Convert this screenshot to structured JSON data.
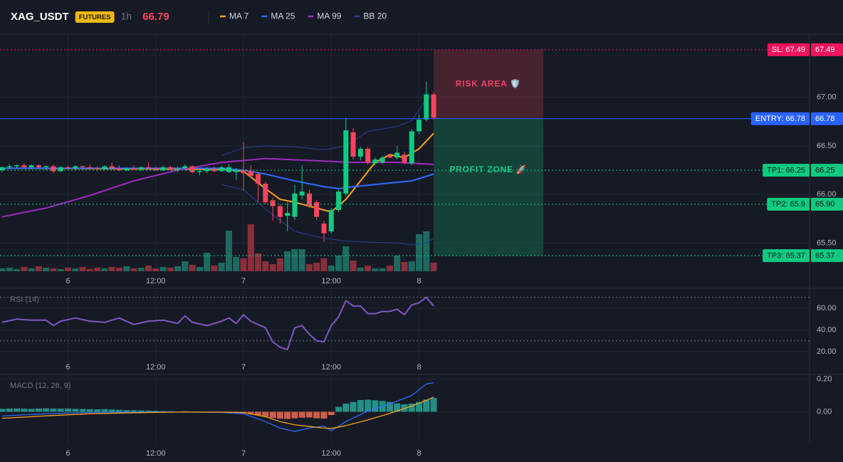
{
  "chart_data": [
    {
      "type": "candlestick",
      "title": "XAG_USDT",
      "badge": "FUTURES",
      "interval": "1h",
      "last_price": 66.79,
      "up_color": "#0ecb81",
      "down_color": "#f6465d",
      "volume_up_color": "#1d6b60",
      "volume_down_color": "#8a2f3c",
      "grid": true,
      "xlim": [
        -0.3,
        110.4
      ],
      "xticks": [
        {
          "value": 9,
          "label": "6"
        },
        {
          "value": 21,
          "label": "12:00"
        },
        {
          "value": 33,
          "label": "7"
        },
        {
          "value": 45,
          "label": "12:00"
        },
        {
          "value": 57,
          "label": "8"
        }
      ],
      "ylim": [
        65.21,
        67.65
      ],
      "yticks": [
        {
          "value": 65.5,
          "label": "65.50"
        },
        {
          "value": 66,
          "label": "66.00"
        },
        {
          "value": 66.5,
          "label": "66.50"
        },
        {
          "value": 67,
          "label": "67.00"
        }
      ],
      "volume_ylim": [
        0,
        333
      ],
      "x": [
        0,
        1,
        2,
        3,
        4,
        5,
        6,
        7,
        8,
        9,
        10,
        11,
        12,
        13,
        14,
        15,
        16,
        17,
        18,
        19,
        20,
        21,
        22,
        23,
        24,
        25,
        26,
        27,
        28,
        29,
        30,
        31,
        32,
        33,
        34,
        35,
        36,
        37,
        38,
        39,
        40,
        41,
        42,
        43,
        44,
        45,
        46,
        47,
        48,
        49,
        50,
        51,
        52,
        53,
        54,
        55,
        56,
        57,
        58,
        59
      ],
      "open": [
        66.25,
        66.28,
        66.29,
        66.3,
        66.28,
        66.3,
        66.28,
        66.29,
        66.24,
        66.28,
        66.27,
        66.29,
        66.28,
        66.27,
        66.26,
        66.29,
        66.27,
        66.25,
        66.27,
        66.26,
        66.28,
        66.27,
        66.25,
        66.28,
        66.26,
        66.27,
        66.29,
        66.23,
        66.24,
        66.26,
        66.24,
        66.23,
        66.23,
        66.25,
        66.24,
        66.21,
        66.11,
        65.94,
        65.88,
        65.78,
        65.77,
        65.99,
        66.01,
        65.92,
        65.7,
        65.62,
        65.84,
        66.01,
        66.64,
        66.39,
        66.47,
        66.32,
        66.33,
        66.4,
        66.38,
        66.41,
        66.32,
        66.65,
        66.77,
        67.03
      ],
      "high": [
        66.29,
        66.31,
        66.31,
        66.32,
        66.31,
        66.31,
        66.3,
        66.31,
        66.29,
        66.3,
        66.3,
        66.3,
        66.31,
        66.29,
        66.3,
        66.33,
        66.3,
        66.28,
        66.3,
        66.29,
        66.33,
        66.29,
        66.3,
        66.3,
        66.29,
        66.31,
        66.3,
        66.26,
        66.28,
        66.29,
        66.3,
        66.31,
        66.27,
        66.54,
        66.3,
        66.24,
        66.13,
        65.97,
        65.9,
        65.92,
        66.1,
        66.3,
        66.05,
        65.94,
        65.73,
        65.86,
        66.05,
        66.79,
        66.68,
        66.49,
        66.49,
        66.38,
        66.4,
        66.42,
        66.5,
        66.44,
        66.67,
        66.82,
        67.16,
        67.05
      ],
      "low": [
        66.23,
        66.26,
        66.27,
        66.27,
        66.26,
        66.27,
        66.25,
        66.22,
        66.23,
        66.26,
        66.25,
        66.27,
        66.26,
        66.24,
        66.25,
        66.27,
        66.24,
        66.24,
        66.25,
        66.24,
        66.26,
        66.24,
        66.24,
        66.25,
        66.23,
        66.26,
        66.22,
        66.2,
        66.22,
        66.23,
        66.23,
        66.22,
        66.15,
        66.04,
        66.17,
        65.92,
        65.9,
        65.73,
        65.7,
        65.62,
        65.74,
        65.95,
        65.86,
        65.74,
        65.51,
        65.6,
        65.82,
        65.98,
        66.36,
        66.35,
        66.31,
        66.3,
        66.31,
        66.37,
        66.36,
        66.31,
        66.3,
        66.62,
        66.75,
        66.77
      ],
      "close": [
        66.28,
        66.29,
        66.3,
        66.28,
        66.3,
        66.28,
        66.29,
        66.24,
        66.28,
        66.27,
        66.29,
        66.28,
        66.27,
        66.26,
        66.29,
        66.27,
        66.25,
        66.27,
        66.26,
        66.28,
        66.27,
        66.25,
        66.28,
        66.26,
        66.27,
        66.29,
        66.23,
        66.24,
        66.26,
        66.24,
        66.28,
        66.28,
        66.25,
        66.22,
        66.19,
        66.11,
        65.92,
        65.88,
        65.77,
        65.81,
        66.01,
        66.03,
        65.88,
        65.77,
        65.6,
        65.84,
        66.03,
        66.66,
        66.39,
        66.47,
        66.33,
        66.36,
        66.38,
        66.38,
        66.43,
        66.33,
        66.65,
        66.77,
        67.03,
        66.79
      ],
      "volume": [
        4,
        5,
        3,
        6,
        4,
        7,
        5,
        4,
        3,
        5,
        4,
        6,
        3,
        5,
        4,
        6,
        5,
        7,
        4,
        5,
        8,
        4,
        6,
        5,
        7,
        14,
        9,
        6,
        26,
        8,
        12,
        57,
        20,
        18,
        66,
        25,
        14,
        10,
        18,
        28,
        31,
        31,
        10,
        12,
        18,
        8,
        22,
        35,
        15,
        5,
        8,
        4,
        4,
        8,
        22,
        13,
        14,
        52,
        56,
        12
      ],
      "series": [
        {
          "name": "MA 7",
          "color": "#f7a21b",
          "x": [
            0,
            30,
            33,
            36,
            38,
            40,
            43,
            45,
            47,
            49,
            51,
            53,
            55,
            57,
            59
          ],
          "values": [
            66.27,
            66.26,
            66.24,
            66.06,
            65.95,
            65.92,
            65.86,
            65.82,
            65.95,
            66.14,
            66.33,
            66.41,
            66.38,
            66.47,
            66.63
          ]
        },
        {
          "name": "MA 25",
          "color": "#2f6bff",
          "x": [
            0,
            30,
            33,
            36,
            40,
            44,
            46,
            48,
            52,
            56,
            59
          ],
          "values": [
            66.27,
            66.27,
            66.25,
            66.21,
            66.14,
            66.08,
            66.06,
            66.08,
            66.11,
            66.14,
            66.21
          ]
        },
        {
          "name": "MA 99",
          "color": "#a02bc0",
          "x": [
            0,
            6,
            12,
            18,
            24,
            30,
            36,
            42,
            48,
            54,
            59
          ],
          "values": [
            65.77,
            65.86,
            65.99,
            66.14,
            66.25,
            66.33,
            66.37,
            66.35,
            66.33,
            66.33,
            66.31
          ]
        },
        {
          "name": "BB 20",
          "color": "#2b3f94",
          "x": [
            30,
            33,
            36,
            40,
            44,
            47,
            50,
            54,
            56,
            58,
            59
          ],
          "values": [
            66.4,
            66.48,
            66.5,
            66.49,
            66.46,
            66.5,
            66.65,
            66.7,
            66.76,
            66.98,
            67.02
          ],
          "lower": [
            66.1,
            66.05,
            65.85,
            65.62,
            65.55,
            65.52,
            65.51,
            65.5,
            65.48,
            65.5,
            65.55
          ]
        }
      ],
      "levels": [
        {
          "label": "SL: 67.49",
          "value": 67.49,
          "value_label": "67.49",
          "color": "#f0145a",
          "text_color": "#ffffff",
          "dashed": true
        },
        {
          "label": "ENTRY: 66.78",
          "value": 66.78,
          "value_label": "66.78",
          "color": "#2962ff",
          "text_color": "#ffffff",
          "dashed": false
        },
        {
          "label": "TP1: 66.25",
          "value": 66.25,
          "value_label": "66.25",
          "color": "#0ecb81",
          "text_color": "#0b1a14",
          "dashed": true
        },
        {
          "label": "TP2: 65.9",
          "value": 65.9,
          "value_label": "65.90",
          "color": "#0ecb81",
          "text_color": "#0b1a14",
          "dashed": true
        },
        {
          "label": "TP3: 65.37",
          "value": 65.37,
          "value_label": "65.37",
          "color": "#0ecb81",
          "text_color": "#0b1a14",
          "dashed": true
        }
      ],
      "zones": [
        {
          "label": "RISK AREA 🛡️",
          "color": "#f6465d",
          "text_color": "#f0416a"
        },
        {
          "label": "PROFIT ZONE 🚀",
          "color": "#0ecb81",
          "text_color": "#12c98a"
        }
      ]
    },
    {
      "type": "line",
      "title": "RSI (14)",
      "color": "#7e57c2",
      "grid": true,
      "xlim": [
        -0.3,
        110.4
      ],
      "xticks": [
        {
          "value": 9,
          "label": "6"
        },
        {
          "value": 21,
          "label": "12:00"
        },
        {
          "value": 33,
          "label": "7"
        },
        {
          "value": 45,
          "label": "12:00"
        },
        {
          "value": 57,
          "label": "8"
        }
      ],
      "ylim": [
        9.5,
        77
      ],
      "yticks": [
        {
          "value": 20,
          "label": "20.00"
        },
        {
          "value": 40,
          "label": "40.00"
        },
        {
          "value": 60,
          "label": "60.00"
        }
      ],
      "levels": [
        70,
        30
      ],
      "x": [
        0,
        2,
        4,
        6,
        7,
        8,
        10,
        12,
        14,
        16,
        18,
        20,
        22,
        24,
        25,
        26,
        28,
        30,
        31,
        32,
        33,
        34,
        35,
        36,
        37,
        38,
        39,
        40,
        41,
        42,
        43,
        44,
        45,
        46,
        47,
        48,
        49,
        50,
        51,
        52,
        53,
        54,
        55,
        56,
        57,
        58,
        59
      ],
      "values": [
        47,
        50,
        49,
        49,
        44,
        48,
        51,
        48,
        47,
        51,
        45,
        48,
        49,
        46,
        53,
        47,
        44,
        48,
        51,
        46,
        54,
        48,
        45,
        42,
        29,
        24,
        22,
        42,
        44,
        36,
        30,
        29,
        44,
        52,
        67,
        62,
        62,
        55,
        55,
        57,
        57,
        59,
        54,
        63,
        65,
        70,
        62
      ]
    },
    {
      "type": "macd",
      "title": "MACD (12, 26, 9)",
      "grid": true,
      "pos_color": "#26a69a",
      "neg_color": "#ef6a50",
      "xlim": [
        -0.3,
        110.4
      ],
      "xticks": [
        {
          "value": 9,
          "label": "6"
        },
        {
          "value": 21,
          "label": "12:00"
        },
        {
          "value": 33,
          "label": "7"
        },
        {
          "value": 45,
          "label": "12:00"
        },
        {
          "value": 57,
          "label": "8"
        }
      ],
      "ylim": [
        -0.19,
        0.22
      ],
      "yticks": [
        {
          "value": 0,
          "label": "0.00"
        },
        {
          "value": 0.2,
          "label": "0.20"
        }
      ],
      "x": [
        0,
        1,
        2,
        3,
        4,
        5,
        6,
        7,
        8,
        9,
        10,
        11,
        12,
        13,
        14,
        15,
        16,
        17,
        18,
        19,
        20,
        21,
        22,
        23,
        24,
        25,
        26,
        27,
        28,
        29,
        30,
        31,
        32,
        33,
        34,
        35,
        36,
        37,
        38,
        39,
        40,
        41,
        42,
        43,
        44,
        45,
        46,
        47,
        48,
        49,
        50,
        51,
        52,
        53,
        54,
        55,
        56,
        57,
        58,
        59
      ],
      "histogram": [
        0.018,
        0.02,
        0.02,
        0.019,
        0.018,
        0.02,
        0.021,
        0.02,
        0.019,
        0.02,
        0.018,
        0.017,
        0.016,
        0.015,
        0.016,
        0.014,
        0.012,
        0.01,
        0.009,
        0.008,
        0.007,
        0.006,
        0.004,
        0.003,
        0.002,
        0.003,
        0.001,
        -0.001,
        -0.002,
        -0.002,
        -0.003,
        -0.002,
        -0.004,
        -0.005,
        -0.012,
        -0.02,
        -0.03,
        -0.038,
        -0.042,
        -0.044,
        -0.04,
        -0.036,
        -0.035,
        -0.04,
        -0.042,
        -0.02,
        0.03,
        0.05,
        0.06,
        0.072,
        0.074,
        0.07,
        0.066,
        0.06,
        0.052,
        0.046,
        0.05,
        0.06,
        0.075,
        0.085
      ],
      "series": [
        {
          "color": "#2f6bff",
          "x": [
            0,
            6,
            12,
            18,
            24,
            30,
            33,
            36,
            38,
            40,
            42,
            44,
            45,
            47,
            50,
            53,
            56,
            58,
            59
          ],
          "values": [
            -0.026,
            -0.012,
            -0.004,
            -0.002,
            -0.001,
            -0.004,
            -0.012,
            -0.06,
            -0.1,
            -0.12,
            -0.1,
            -0.088,
            -0.117,
            -0.06,
            0.004,
            0.048,
            0.1,
            0.17,
            0.178
          ]
        },
        {
          "color": "#f7a21b",
          "x": [
            0,
            6,
            12,
            18,
            24,
            30,
            33,
            36,
            38,
            40,
            42,
            44,
            45,
            47,
            50,
            53,
            56,
            58,
            59
          ],
          "values": [
            -0.04,
            -0.025,
            -0.012,
            -0.006,
            -0.002,
            -0.002,
            -0.005,
            -0.03,
            -0.06,
            -0.08,
            -0.09,
            -0.1,
            -0.102,
            -0.085,
            -0.05,
            -0.01,
            0.035,
            0.07,
            0.09
          ]
        }
      ]
    }
  ]
}
